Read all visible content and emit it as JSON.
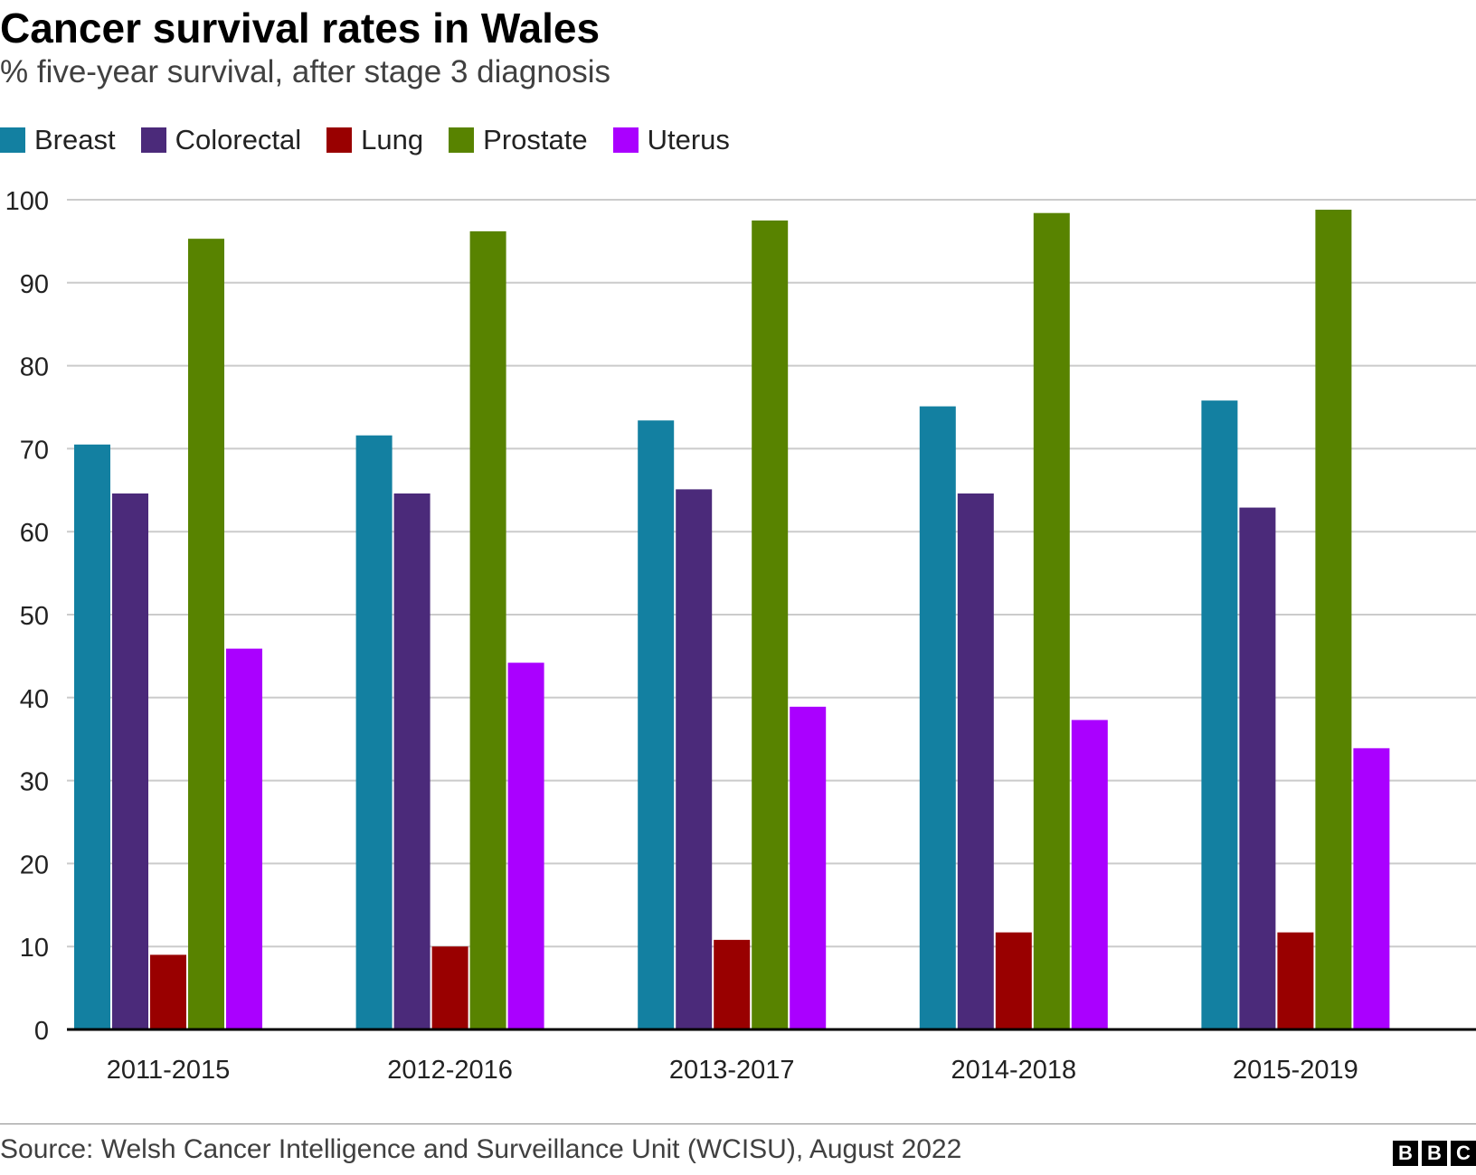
{
  "title": "Cancer survival rates in Wales",
  "subtitle": "% five-year survival, after stage 3 diagnosis",
  "source": "Source: Welsh Cancer Intelligence and Surveillance Unit (WCISU), August 2022",
  "logo": [
    "B",
    "B",
    "C"
  ],
  "colors": {
    "Breast": "#1380A1",
    "Colorectal": "#4B2A7A",
    "Lung": "#990000",
    "Prostate": "#588300",
    "Uterus": "#AA00FF",
    "grid": "#cbcbcb",
    "axis": "#000000"
  },
  "chart_data": {
    "type": "bar",
    "title": "Cancer survival rates in Wales",
    "subtitle": "% five-year survival, after stage 3 diagnosis",
    "xlabel": "",
    "ylabel": "",
    "ylim": [
      0,
      100
    ],
    "yticks": [
      0,
      10,
      20,
      30,
      40,
      50,
      60,
      70,
      80,
      90,
      100
    ],
    "grid": true,
    "legend_position": "top-left",
    "categories": [
      "2011-2015",
      "2012-2016",
      "2013-2017",
      "2014-2018",
      "2015-2019"
    ],
    "series": [
      {
        "name": "Breast",
        "values": [
          70.5,
          71.6,
          73.4,
          75.1,
          75.8
        ]
      },
      {
        "name": "Colorectal",
        "values": [
          64.6,
          64.6,
          65.1,
          64.6,
          62.9
        ]
      },
      {
        "name": "Lung",
        "values": [
          9.0,
          10.0,
          10.8,
          11.7,
          11.7
        ]
      },
      {
        "name": "Prostate",
        "values": [
          95.3,
          96.2,
          97.5,
          98.4,
          98.8
        ]
      },
      {
        "name": "Uterus",
        "values": [
          45.9,
          44.2,
          38.9,
          37.3,
          33.9
        ]
      }
    ]
  }
}
